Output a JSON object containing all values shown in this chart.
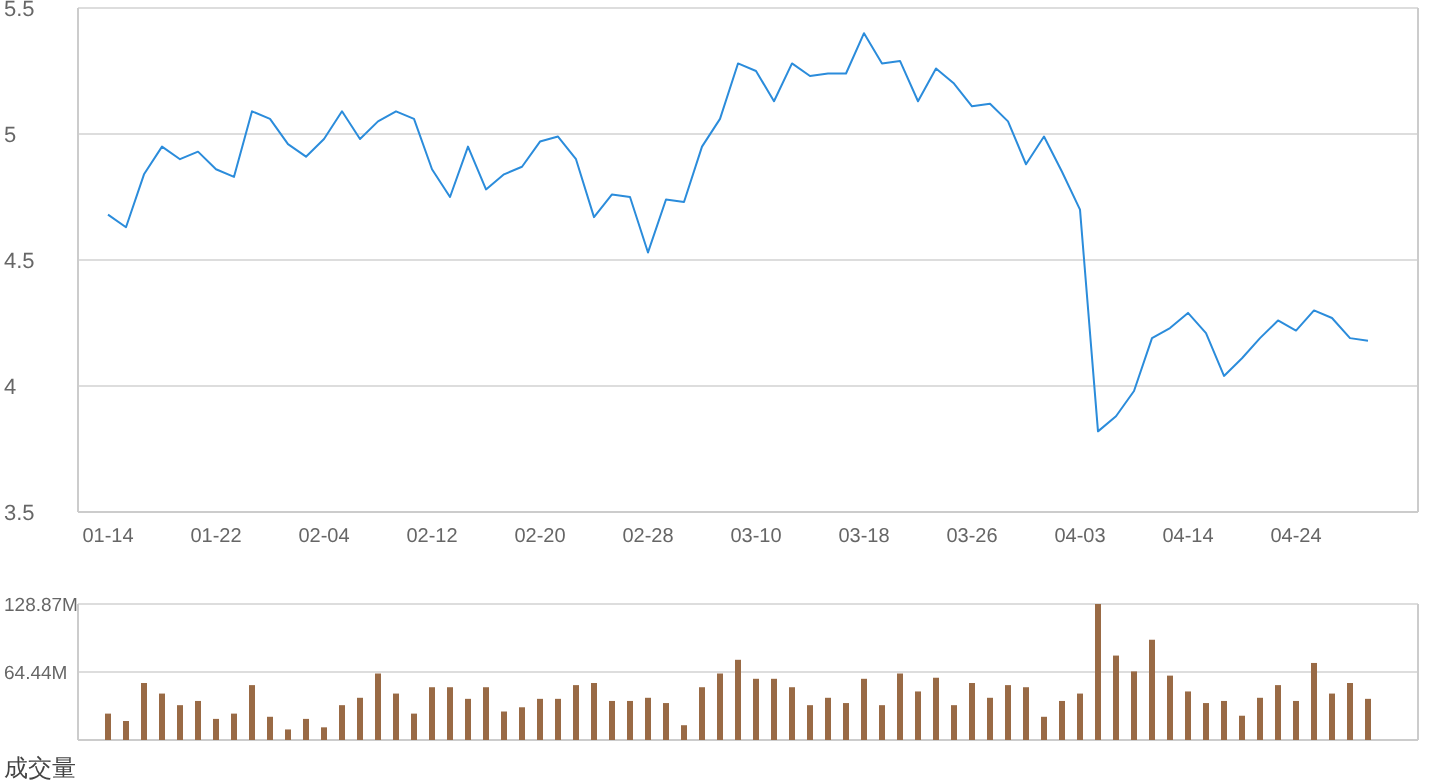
{
  "chart_data": [
    {
      "type": "line",
      "categories": [
        "01-14",
        null,
        null,
        null,
        null,
        null,
        "01-22",
        null,
        null,
        null,
        null,
        null,
        "02-04",
        null,
        null,
        null,
        null,
        null,
        "02-12",
        null,
        null,
        null,
        null,
        null,
        "02-20",
        null,
        null,
        null,
        null,
        null,
        "02-28",
        null,
        null,
        null,
        null,
        null,
        "03-10",
        null,
        null,
        null,
        null,
        null,
        "03-18",
        null,
        null,
        null,
        null,
        null,
        "03-26",
        null,
        null,
        null,
        null,
        null,
        "04-03",
        null,
        null,
        null,
        null,
        null,
        "04-14",
        null,
        null,
        null,
        null,
        null,
        "04-24",
        null,
        null,
        null,
        null
      ],
      "series": [
        {
          "color": "#2b8cdb",
          "values": [
            4.68,
            4.63,
            4.84,
            4.95,
            4.9,
            4.93,
            4.86,
            4.83,
            5.09,
            5.06,
            4.96,
            4.91,
            4.98,
            5.09,
            4.98,
            5.05,
            5.09,
            5.06,
            4.86,
            4.75,
            4.95,
            4.78,
            4.84,
            4.87,
            4.97,
            4.99,
            4.9,
            4.67,
            4.76,
            4.75,
            4.53,
            4.74,
            4.73,
            4.95,
            5.06,
            5.28,
            5.25,
            5.13,
            5.28,
            5.23,
            5.24,
            5.24,
            5.4,
            5.28,
            5.29,
            5.13,
            5.26,
            5.2,
            5.11,
            5.12,
            5.05,
            4.88,
            4.99,
            4.85,
            4.7,
            3.82,
            3.88,
            3.98,
            4.19,
            4.23,
            4.29,
            4.21,
            4.04,
            4.11,
            4.19,
            4.26,
            4.22,
            4.3,
            4.27,
            4.19,
            4.18
          ]
        }
      ],
      "ylim": [
        3.5,
        5.5
      ],
      "yticks": [
        3.5,
        4,
        4.5,
        5,
        5.5
      ],
      "grid": "y"
    },
    {
      "type": "bar",
      "xlabel": "成交量",
      "categories": [
        null,
        null,
        null,
        null,
        null,
        null,
        null,
        null,
        null,
        null,
        null,
        null,
        null,
        null,
        null,
        null,
        null,
        null,
        null,
        null,
        null,
        null,
        null,
        null,
        null,
        null,
        null,
        null,
        null,
        null,
        null,
        null,
        null,
        null,
        null,
        null,
        null,
        null,
        null,
        null,
        null,
        null,
        null,
        null,
        null,
        null,
        null,
        null,
        null,
        null,
        null,
        null,
        null,
        null,
        null,
        null,
        null,
        null,
        null,
        null,
        null,
        null,
        null,
        null,
        null,
        null,
        null,
        null,
        null,
        null,
        null
      ],
      "series": [
        {
          "color": "#996a45",
          "values": [
            25,
            18,
            54,
            44,
            33,
            37,
            20,
            25,
            52,
            22,
            10,
            20,
            12,
            33,
            40,
            63,
            44,
            25,
            50,
            50,
            39,
            50,
            27,
            31,
            39,
            39,
            52,
            54,
            37,
            37,
            40,
            35,
            14,
            50,
            63,
            76,
            58,
            58,
            50,
            33,
            40,
            35,
            58,
            33,
            63,
            46,
            59,
            33,
            54,
            40,
            52,
            50,
            22,
            37,
            44,
            128.87,
            80,
            65,
            95,
            61,
            46,
            35,
            37,
            23,
            40,
            52,
            37,
            73,
            44,
            54,
            39
          ]
        }
      ],
      "ylim": [
        0,
        128.87
      ],
      "yticks": [
        {
          "value": 64.44,
          "label": "64.44M"
        },
        {
          "value": 128.87,
          "label": "128.87M"
        }
      ],
      "grid": "y",
      "tick_labels": "y"
    }
  ]
}
